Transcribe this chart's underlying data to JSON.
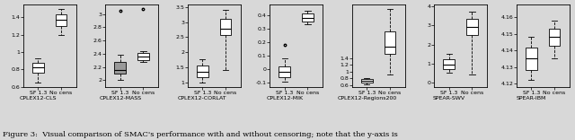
{
  "figure_title": "Figure 3:  Visual comparison of SMAC's performance with and without censoring; note that the y-axis is",
  "panels": [
    {
      "label": "CPLEX12-CLS",
      "xlabels": [
        "SF 1.3\nCPLEX12-CLS",
        "No cens"
      ],
      "box1": {
        "med": 0.82,
        "q1": 0.76,
        "q3": 0.88,
        "whislo": 0.65,
        "whishi": 0.93,
        "fliers": []
      },
      "box2": {
        "med": 1.37,
        "q1": 1.3,
        "q3": 1.43,
        "whislo": 1.2,
        "whishi": 1.49,
        "fliers": []
      },
      "ylim": [
        0.6,
        1.55
      ],
      "yticks": [
        0.6,
        0.8,
        1.0,
        1.2,
        1.4
      ],
      "filled": false
    },
    {
      "label": "CPLEX12-MASS",
      "xlabels": [
        "SF 1.3\nCPLEX12-MASS",
        "No cens"
      ],
      "box1": {
        "med": 2.16,
        "q1": 2.1,
        "q3": 2.28,
        "whislo": 2.0,
        "whishi": 2.38,
        "fliers": [
          3.05
        ]
      },
      "box2": {
        "med": 2.36,
        "q1": 2.3,
        "q3": 2.41,
        "whislo": 2.28,
        "whishi": 2.44,
        "fliers": [
          3.08
        ]
      },
      "ylim": [
        1.9,
        3.15
      ],
      "yticks": [
        2.0,
        2.2,
        2.4,
        2.6,
        2.8,
        3.0
      ],
      "filled": true
    },
    {
      "label": "CPLEX12-CORLAT",
      "xlabels": [
        "SF 1.3\nCPLEX12-CORLAT",
        "No cens"
      ],
      "box1": {
        "med": 1.35,
        "q1": 1.18,
        "q3": 1.55,
        "whislo": 1.0,
        "whishi": 1.78,
        "fliers": []
      },
      "box2": {
        "med": 2.78,
        "q1": 2.58,
        "q3": 3.1,
        "whislo": 1.42,
        "whishi": 3.42,
        "fliers": []
      },
      "ylim": [
        0.85,
        3.6
      ],
      "yticks": [
        1.0,
        1.5,
        2.0,
        2.5,
        3.0,
        3.5
      ],
      "filled": false
    },
    {
      "label": "CPLEX12-MIK",
      "xlabels": [
        "SF 1.3\nCPLEX12-MIK",
        "No cens"
      ],
      "box1": {
        "med": -0.02,
        "q1": -0.06,
        "q3": 0.02,
        "whislo": -0.09,
        "whishi": 0.08,
        "fliers": [
          0.18
        ]
      },
      "box2": {
        "med": 0.38,
        "q1": 0.35,
        "q3": 0.41,
        "whislo": 0.33,
        "whishi": 0.43,
        "fliers": []
      },
      "ylim": [
        -0.13,
        0.48
      ],
      "yticks": [
        -0.1,
        0.0,
        0.1,
        0.2,
        0.3,
        0.4
      ],
      "filled": false
    },
    {
      "label": "CPLEX12-Regions200",
      "xlabels": [
        "SF 1.3\nCPLEX12-Regions200",
        "No cens"
      ],
      "box1": {
        "med": 0.72,
        "q1": 0.68,
        "q3": 0.77,
        "whislo": 0.62,
        "whishi": 0.82,
        "fliers": []
      },
      "box2": {
        "med": 1.75,
        "q1": 1.52,
        "q3": 2.2,
        "whislo": 0.92,
        "whishi": 2.85,
        "fliers": []
      },
      "ylim": [
        0.55,
        3.0
      ],
      "yticks": [
        0.6,
        0.8,
        1.0,
        1.2,
        1.4
      ],
      "filled": false
    },
    {
      "label": "SPEAR-SWV",
      "xlabels": [
        "SF 1.3\nSPEAR-SWV",
        "No cens"
      ],
      "box1": {
        "med": 0.95,
        "q1": 0.72,
        "q3": 1.25,
        "whislo": 0.55,
        "whishi": 1.52,
        "fliers": []
      },
      "box2": {
        "med": 2.9,
        "q1": 2.48,
        "q3": 3.35,
        "whislo": 0.45,
        "whishi": 3.72,
        "fliers": []
      },
      "ylim": [
        -0.2,
        4.1
      ],
      "yticks": [
        0,
        1,
        2,
        3,
        4
      ],
      "filled": false
    },
    {
      "label": "SPEAR-IBM",
      "xlabels": [
        "SF 1.3\nSPEAR-IBM",
        "No cens"
      ],
      "box1": {
        "med": 4.135,
        "q1": 4.128,
        "q3": 4.142,
        "whislo": 4.122,
        "whishi": 4.148,
        "fliers": []
      },
      "box2": {
        "med": 4.148,
        "q1": 4.143,
        "q3": 4.153,
        "whislo": 4.135,
        "whishi": 4.158,
        "fliers": []
      },
      "ylim": [
        4.118,
        4.168
      ],
      "yticks": [
        4.12,
        4.13,
        4.14,
        4.15,
        4.16
      ],
      "filled": false
    }
  ],
  "bg_color": "#d8d8d8",
  "box_color": "#ffffff",
  "filled_color": "#999999",
  "fontsize": 4.5,
  "title_fontsize": 6.0
}
